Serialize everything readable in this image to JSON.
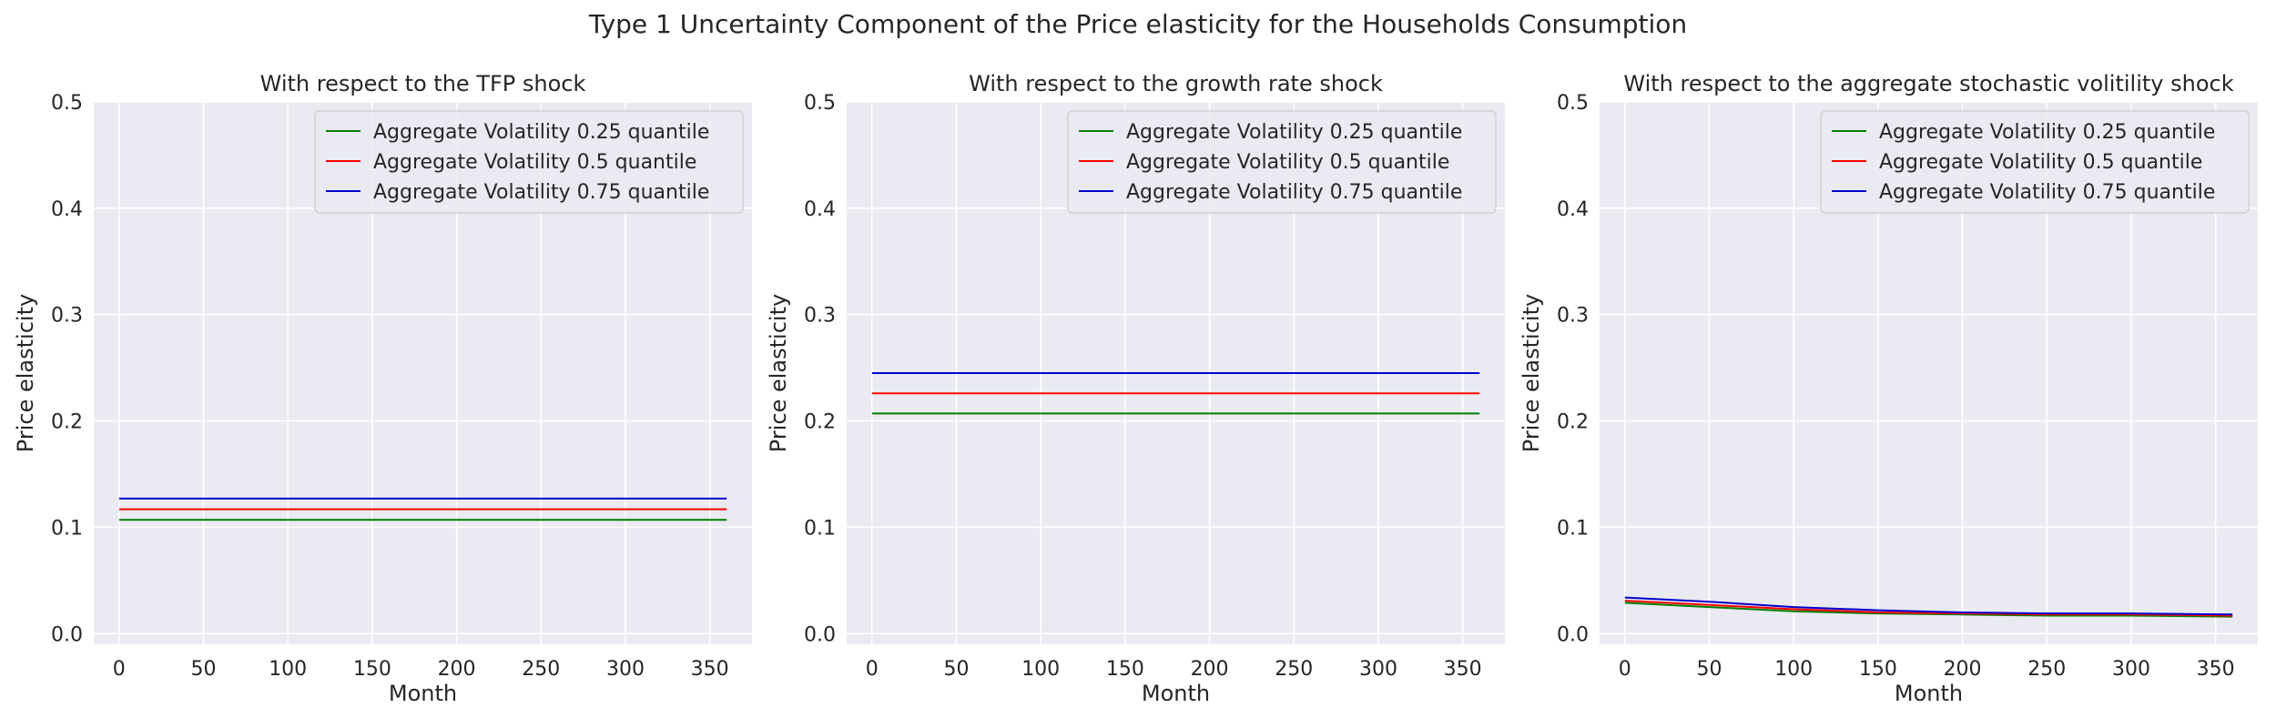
{
  "figure": {
    "suptitle": "Type 1 Uncertainty Component of the Price elasticity for the Households Consumption"
  },
  "colors": {
    "axes_bg": "#EAEAF2",
    "grid": "#FFFFFF",
    "q25": "#008000",
    "q50": "#FF0000",
    "q75": "#0000CC"
  },
  "chart_data": [
    {
      "type": "line",
      "title": "With respect to the TFP shock",
      "xlabel": "Month",
      "ylabel": "Price elasticity",
      "xlim": [
        -15,
        375
      ],
      "ylim": [
        -0.01,
        0.5
      ],
      "xticks": [
        0,
        50,
        100,
        150,
        200,
        250,
        300,
        350
      ],
      "yticks": [
        0.0,
        0.1,
        0.2,
        0.3,
        0.4,
        0.5
      ],
      "grid": true,
      "legend": "upper right",
      "x": [
        0,
        360
      ],
      "series": [
        {
          "name": "Aggregate Volatility 0.25 quantile",
          "color": "#008000",
          "values": [
            0.107,
            0.107
          ]
        },
        {
          "name": "Aggregate Volatility 0.5 quantile",
          "color": "#FF0000",
          "values": [
            0.117,
            0.117
          ]
        },
        {
          "name": "Aggregate Volatility 0.75 quantile",
          "color": "#0000CC",
          "values": [
            0.127,
            0.127
          ]
        }
      ]
    },
    {
      "type": "line",
      "title": "With respect to the growth rate shock",
      "xlabel": "Month",
      "ylabel": "Price elasticity",
      "xlim": [
        -15,
        375
      ],
      "ylim": [
        -0.01,
        0.5
      ],
      "xticks": [
        0,
        50,
        100,
        150,
        200,
        250,
        300,
        350
      ],
      "yticks": [
        0.0,
        0.1,
        0.2,
        0.3,
        0.4,
        0.5
      ],
      "grid": true,
      "legend": "upper right",
      "x": [
        0,
        360
      ],
      "series": [
        {
          "name": "Aggregate Volatility 0.25 quantile",
          "color": "#008000",
          "values": [
            0.207,
            0.207
          ]
        },
        {
          "name": "Aggregate Volatility 0.5 quantile",
          "color": "#FF0000",
          "values": [
            0.226,
            0.226
          ]
        },
        {
          "name": "Aggregate Volatility 0.75 quantile",
          "color": "#0000CC",
          "values": [
            0.245,
            0.245
          ]
        }
      ]
    },
    {
      "type": "line",
      "title": "With respect to the aggregate stochastic volitility shock",
      "xlabel": "Month",
      "ylabel": "Price elasticity",
      "xlim": [
        -15,
        375
      ],
      "ylim": [
        -0.01,
        0.5
      ],
      "xticks": [
        0,
        50,
        100,
        150,
        200,
        250,
        300,
        350
      ],
      "yticks": [
        0.0,
        0.1,
        0.2,
        0.3,
        0.4,
        0.5
      ],
      "grid": true,
      "legend": "upper right",
      "x": [
        0,
        50,
        100,
        150,
        200,
        250,
        300,
        360
      ],
      "series": [
        {
          "name": "Aggregate Volatility 0.25 quantile",
          "color": "#008000",
          "values": [
            0.029,
            0.025,
            0.021,
            0.019,
            0.018,
            0.017,
            0.017,
            0.016
          ]
        },
        {
          "name": "Aggregate Volatility 0.5 quantile",
          "color": "#FF0000",
          "values": [
            0.031,
            0.027,
            0.023,
            0.02,
            0.019,
            0.018,
            0.018,
            0.017
          ]
        },
        {
          "name": "Aggregate Volatility 0.75 quantile",
          "color": "#0000CC",
          "values": [
            0.034,
            0.03,
            0.025,
            0.022,
            0.02,
            0.019,
            0.019,
            0.018
          ]
        }
      ]
    }
  ]
}
